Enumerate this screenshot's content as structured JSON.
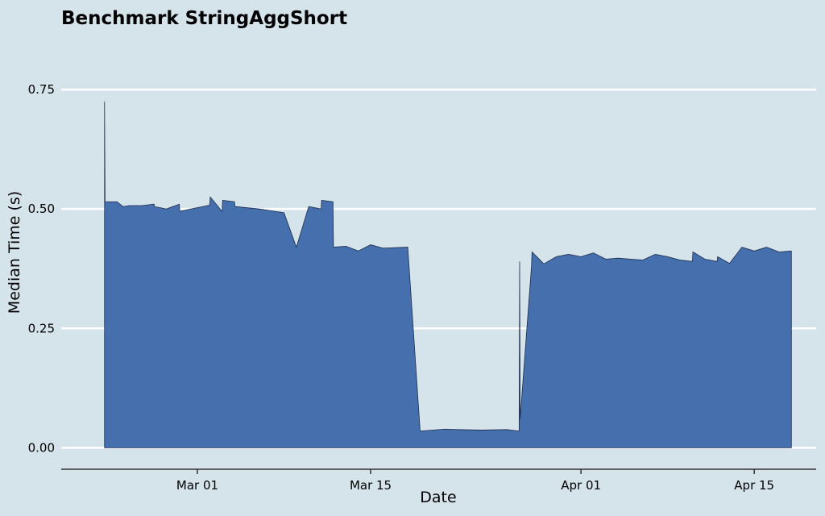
{
  "colors": {
    "background": "#d5e4eb",
    "area_fill": "#4570ad",
    "area_edge": "#1d2b4a",
    "grid": "#ffffff",
    "axis": "#333333"
  },
  "chart_data": {
    "type": "area",
    "title": "Benchmark StringAggShort",
    "xlabel": "Date",
    "ylabel": "Median Time (s)",
    "x_ticks": [
      {
        "date": "2024-03-01",
        "label": "Mar 01"
      },
      {
        "date": "2024-03-15",
        "label": "Mar 15"
      },
      {
        "date": "2024-04-01",
        "label": "Apr 01"
      },
      {
        "date": "2024-04-15",
        "label": "Apr 15"
      }
    ],
    "y_ticks": [
      {
        "value": 0.0,
        "label": "0.00"
      },
      {
        "value": 0.25,
        "label": "0.25"
      },
      {
        "value": 0.5,
        "label": "0.50"
      },
      {
        "value": 0.75,
        "label": "0.75"
      }
    ],
    "xlim": [
      "2024-02-19",
      "2024-04-20"
    ],
    "ylim": [
      -0.045,
      0.87
    ],
    "grid": "horizontal",
    "legend": "none",
    "series": [
      {
        "x": [
          "2024-02-22T12:00",
          "2024-02-22T12:00",
          "2024-02-22T13:00",
          "2024-02-23T12:00",
          "2024-02-24T00:00",
          "2024-02-24T12:00",
          "2024-02-25T12:00",
          "2024-02-26T12:00",
          "2024-02-26T13:00",
          "2024-02-27T12:00",
          "2024-02-28T13:00",
          "2024-02-28T14:00",
          "2024-02-29T12:00",
          "2024-03-02T00:00",
          "2024-03-02T01:00",
          "2024-03-03T00:00",
          "2024-03-03T01:00",
          "2024-03-04T00:00",
          "2024-03-04T01:00",
          "2024-03-06T00:00",
          "2024-03-07T00:00",
          "2024-03-08T00:00",
          "2024-03-09T00:00",
          "2024-03-10T00:00",
          "2024-03-11T00:00",
          "2024-03-11T01:00",
          "2024-03-11T23:00",
          "2024-03-12T00:00",
          "2024-03-13T00:00",
          "2024-03-14T00:00",
          "2024-03-15T00:00",
          "2024-03-16T00:00",
          "2024-03-18T00:00",
          "2024-03-19T00:00",
          "2024-03-21T00:00",
          "2024-03-22T00:00",
          "2024-03-24T00:00",
          "2024-03-26T00:00",
          "2024-03-27T00:00",
          "2024-03-27T01:00",
          "2024-03-27T02:00",
          "2024-03-28T00:00",
          "2024-03-28T01:00",
          "2024-03-29T00:00",
          "2024-03-30T00:00",
          "2024-03-31T00:00",
          "2024-04-01T00:00",
          "2024-04-02T00:00",
          "2024-04-03T00:00",
          "2024-04-04T00:00",
          "2024-04-05T00:00",
          "2024-04-06T00:00",
          "2024-04-07T00:00",
          "2024-04-08T00:00",
          "2024-04-09T00:00",
          "2024-04-10T00:00",
          "2024-04-10T01:00",
          "2024-04-11T00:00",
          "2024-04-12T00:00",
          "2024-04-12T01:00",
          "2024-04-13T00:00",
          "2024-04-14T00:00",
          "2024-04-15T00:00",
          "2024-04-16T00:00",
          "2024-04-17T00:00",
          "2024-04-18T00:00"
        ],
        "y": [
          0.51,
          0.725,
          0.515,
          0.515,
          0.505,
          0.507,
          0.507,
          0.51,
          0.505,
          0.5,
          0.51,
          0.495,
          0.5,
          0.508,
          0.525,
          0.495,
          0.518,
          0.515,
          0.505,
          0.5,
          0.496,
          0.492,
          0.42,
          0.505,
          0.5,
          0.518,
          0.515,
          0.42,
          0.422,
          0.412,
          0.425,
          0.418,
          0.42,
          0.035,
          0.039,
          0.038,
          0.037,
          0.038,
          0.035,
          0.39,
          0.06,
          0.38,
          0.41,
          0.385,
          0.4,
          0.405,
          0.4,
          0.408,
          0.395,
          0.397,
          0.395,
          0.393,
          0.405,
          0.4,
          0.393,
          0.39,
          0.41,
          0.395,
          0.39,
          0.4,
          0.386,
          0.42,
          0.412,
          0.42,
          0.41,
          0.412
        ]
      }
    ]
  }
}
